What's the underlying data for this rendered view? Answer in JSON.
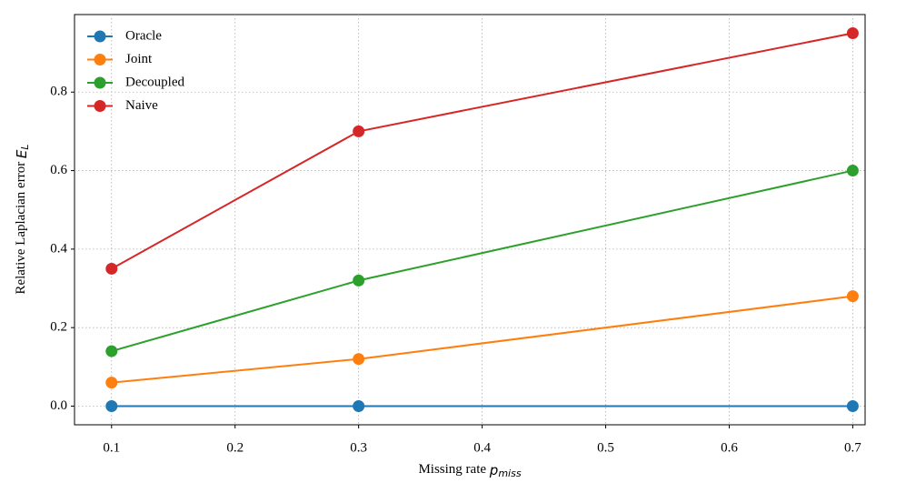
{
  "chart_data": {
    "type": "line",
    "xlabel": "Missing rate p_miss",
    "ylabel": "Relative Laplacian error E_L",
    "x": [
      0.1,
      0.3,
      0.7
    ],
    "series": [
      {
        "name": "Oracle",
        "color": "#1f77b4",
        "values": [
          0,
          0,
          0
        ]
      },
      {
        "name": "Joint",
        "color": "#ff7f0e",
        "values": [
          0.06,
          0.12,
          0.28
        ]
      },
      {
        "name": "Decoupled",
        "color": "#2ca02c",
        "values": [
          0.14,
          0.32,
          0.6
        ]
      },
      {
        "name": "Naive",
        "color": "#d62728",
        "values": [
          0.35,
          0.7,
          0.95
        ]
      }
    ],
    "xlim": [
      0.07,
      0.71
    ],
    "ylim": [
      -0.0475,
      0.9975
    ],
    "xticks": [
      0.1,
      0.2,
      0.3,
      0.4,
      0.5,
      0.6,
      0.7
    ],
    "yticks": [
      {
        "value": 0,
        "label": "0.0"
      },
      0.2,
      0.4,
      0.6,
      0.8
    ],
    "grid": true,
    "legend": "upper-left"
  }
}
